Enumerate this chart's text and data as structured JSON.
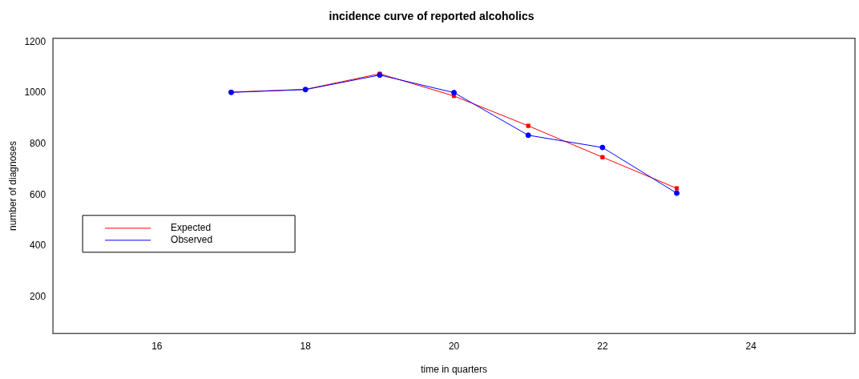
{
  "chart_data": {
    "type": "line",
    "title": "incidence curve of reported alcoholics",
    "xlabel": "time in quarters",
    "ylabel": "number of diagnoses",
    "x": [
      17,
      18,
      19,
      20,
      21,
      22,
      23
    ],
    "series": [
      {
        "name": "Expected",
        "color": "#ff0000",
        "marker": "square",
        "values": [
          1003,
          1014,
          1075,
          988,
          871,
          748,
          626
        ]
      },
      {
        "name": "Observed",
        "color": "#0000ff",
        "marker": "circle",
        "values": [
          1002,
          1013,
          1070,
          1001,
          834,
          786,
          607
        ]
      }
    ],
    "xlim": [
      14.6,
      25.4
    ],
    "xticks": [
      16,
      18,
      20,
      22,
      24
    ],
    "ylim": [
      57,
      1214
    ],
    "yticks": [
      200,
      400,
      600,
      800,
      1000,
      1200
    ],
    "grid": false,
    "legend": "left",
    "line_style": "solid"
  }
}
